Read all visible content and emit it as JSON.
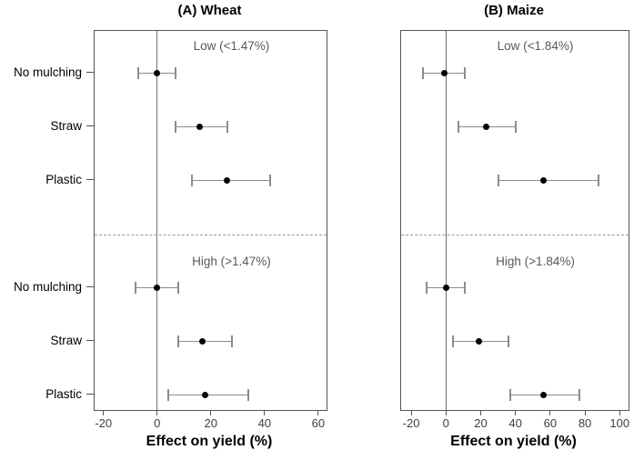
{
  "chart_data": {
    "type": "forest-dot-whisker",
    "xlabel": "Effect on yield (%)",
    "row_labels": [
      "No mulching",
      "Straw",
      "Plastic"
    ],
    "legend": "none",
    "grid": false,
    "panels": [
      {
        "title": "(A) Wheat",
        "xlim": [
          -23.3,
          63.1
        ],
        "ticks": [
          -20,
          0,
          20,
          40,
          60
        ],
        "groups": [
          {
            "label": "Low (<1.47%)",
            "rows": [
              {
                "category": "No mulching",
                "estimate": 0,
                "ci_low": -7,
                "ci_high": 7
              },
              {
                "category": "Straw",
                "estimate": 16,
                "ci_low": 7,
                "ci_high": 26
              },
              {
                "category": "Plastic",
                "estimate": 26,
                "ci_low": 13,
                "ci_high": 42
              }
            ]
          },
          {
            "label": "High (>1.47%)",
            "rows": [
              {
                "category": "No mulching",
                "estimate": 0,
                "ci_low": -8,
                "ci_high": 8
              },
              {
                "category": "Straw",
                "estimate": 17,
                "ci_low": 8,
                "ci_high": 28
              },
              {
                "category": "Plastic",
                "estimate": 18,
                "ci_low": 4,
                "ci_high": 34
              }
            ]
          }
        ]
      },
      {
        "title": "(B) Maize",
        "xlim": [
          -25.8,
          105.1
        ],
        "ticks": [
          -20,
          0,
          20,
          40,
          60,
          80,
          100
        ],
        "groups": [
          {
            "label": "Low (<1.84%)",
            "rows": [
              {
                "category": "No mulching",
                "estimate": -1,
                "ci_low": -13,
                "ci_high": 11
              },
              {
                "category": "Straw",
                "estimate": 23,
                "ci_low": 7,
                "ci_high": 40
              },
              {
                "category": "Plastic",
                "estimate": 56,
                "ci_low": 30,
                "ci_high": 88
              }
            ]
          },
          {
            "label": "High (>1.84%)",
            "rows": [
              {
                "category": "No mulching",
                "estimate": 0,
                "ci_low": -11,
                "ci_high": 11
              },
              {
                "category": "Straw",
                "estimate": 19,
                "ci_low": 4,
                "ci_high": 36
              },
              {
                "category": "Plastic",
                "estimate": 56,
                "ci_low": 37,
                "ci_high": 77
              }
            ]
          }
        ]
      }
    ],
    "colors": {
      "point": "#000000",
      "whisker": "#8c8c8c",
      "zero_line": "#737373",
      "panel_border": "#555555",
      "group_label": "#595959",
      "tick_label": "#404040",
      "divider": "#999999"
    }
  }
}
